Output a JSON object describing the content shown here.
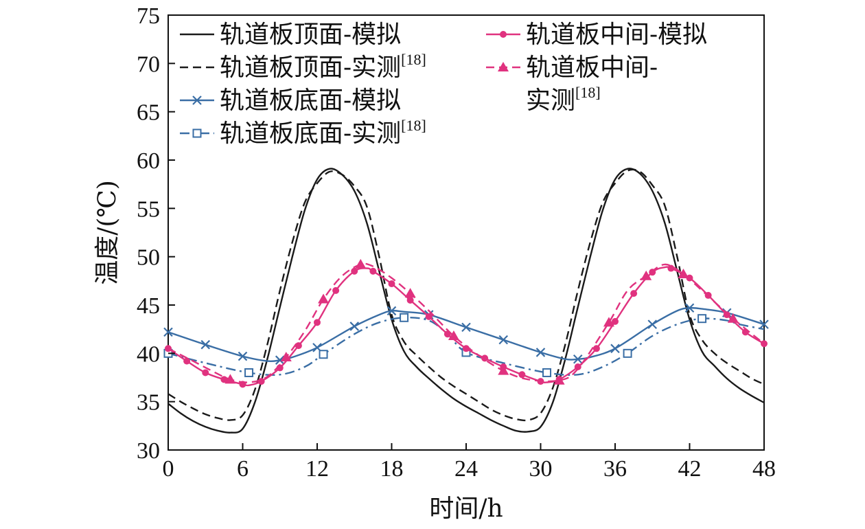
{
  "chart_data": {
    "type": "line",
    "xlabel": "时间/h",
    "ylabel": "温度/(℃)",
    "xlim": [
      0,
      48
    ],
    "ylim": [
      30,
      75
    ],
    "xticks": [
      0,
      6,
      12,
      18,
      24,
      30,
      36,
      42,
      48
    ],
    "yticks": [
      30,
      35,
      40,
      45,
      50,
      55,
      60,
      65,
      70,
      75
    ],
    "grid": false,
    "legend_position": "top",
    "colors": {
      "black": "#1a1a1a",
      "blue": "#3a6ea5",
      "pink": "#e0327f"
    },
    "series": [
      {
        "name": "轨道板顶面-模拟",
        "ref": "",
        "color": "#1a1a1a",
        "dash": "solid",
        "marker": "none",
        "points": [
          [
            0,
            34.8
          ],
          [
            1,
            33.8
          ],
          [
            2,
            33.0
          ],
          [
            3,
            32.4
          ],
          [
            4,
            32.0
          ],
          [
            5,
            31.8
          ],
          [
            6,
            32.2
          ],
          [
            7,
            35.0
          ],
          [
            8,
            39.5
          ],
          [
            9,
            44.8
          ],
          [
            10,
            50.0
          ],
          [
            11,
            54.8
          ],
          [
            12,
            58.0
          ],
          [
            13,
            59.1
          ],
          [
            14,
            58.5
          ],
          [
            15,
            56.8
          ],
          [
            16,
            53.5
          ],
          [
            17,
            48.5
          ],
          [
            18,
            43.5
          ],
          [
            19,
            40.2
          ],
          [
            20,
            38.6
          ],
          [
            21,
            37.4
          ],
          [
            22,
            36.3
          ],
          [
            23,
            35.3
          ],
          [
            24,
            34.5
          ],
          [
            25,
            33.8
          ],
          [
            26,
            33.1
          ],
          [
            27,
            32.5
          ],
          [
            28,
            32.0
          ],
          [
            29,
            31.9
          ],
          [
            30,
            32.4
          ],
          [
            31,
            35.0
          ],
          [
            32,
            39.5
          ],
          [
            33,
            44.8
          ],
          [
            34,
            50.0
          ],
          [
            35,
            54.8
          ],
          [
            36,
            58.0
          ],
          [
            37,
            59.1
          ],
          [
            38,
            58.6
          ],
          [
            39,
            56.8
          ],
          [
            40,
            53.5
          ],
          [
            41,
            48.5
          ],
          [
            42,
            43.5
          ],
          [
            43,
            40.2
          ],
          [
            44,
            38.7
          ],
          [
            45,
            37.4
          ],
          [
            46,
            36.4
          ],
          [
            47,
            35.6
          ],
          [
            48,
            34.9
          ]
        ]
      },
      {
        "name": "轨道板顶面-实测",
        "ref": "[18]",
        "color": "#1a1a1a",
        "dash": "dashed",
        "marker": "none",
        "points": [
          [
            0,
            35.8
          ],
          [
            1,
            35.0
          ],
          [
            2,
            34.3
          ],
          [
            3,
            33.7
          ],
          [
            4,
            33.3
          ],
          [
            5,
            33.1
          ],
          [
            6,
            33.6
          ],
          [
            7,
            36.3
          ],
          [
            8,
            41.0
          ],
          [
            9,
            46.5
          ],
          [
            10,
            51.5
          ],
          [
            11,
            55.6
          ],
          [
            12,
            57.6
          ],
          [
            13,
            58.8
          ],
          [
            14,
            58.5
          ],
          [
            15,
            57.3
          ],
          [
            16,
            55.2
          ],
          [
            17,
            50.0
          ],
          [
            18,
            44.0
          ],
          [
            19,
            41.2
          ],
          [
            20,
            39.8
          ],
          [
            21,
            38.6
          ],
          [
            22,
            37.5
          ],
          [
            23,
            36.6
          ],
          [
            24,
            35.8
          ],
          [
            25,
            35.0
          ],
          [
            26,
            34.2
          ],
          [
            27,
            33.6
          ],
          [
            28,
            33.2
          ],
          [
            29,
            33.1
          ],
          [
            30,
            33.8
          ],
          [
            31,
            36.5
          ],
          [
            32,
            41.0
          ],
          [
            33,
            46.5
          ],
          [
            34,
            51.5
          ],
          [
            35,
            55.6
          ],
          [
            36,
            57.6
          ],
          [
            37,
            58.9
          ],
          [
            38,
            58.8
          ],
          [
            39,
            57.4
          ],
          [
            40,
            55.3
          ],
          [
            41,
            50.0
          ],
          [
            42,
            44.0
          ],
          [
            43,
            41.4
          ],
          [
            44,
            40.0
          ],
          [
            45,
            39.0
          ],
          [
            46,
            38.2
          ],
          [
            47,
            37.4
          ],
          [
            48,
            36.8
          ]
        ]
      },
      {
        "name": "轨道板底面-模拟",
        "ref": "",
        "color": "#3a6ea5",
        "dash": "solid",
        "marker": "x",
        "marker_x": [
          0,
          3,
          6,
          9,
          12,
          15,
          18,
          21,
          24,
          27,
          30,
          33,
          36,
          39,
          42,
          45,
          48
        ],
        "points": [
          [
            0,
            42.2
          ],
          [
            3,
            40.9
          ],
          [
            6,
            39.7
          ],
          [
            8,
            39.2
          ],
          [
            9,
            39.3
          ],
          [
            10,
            39.6
          ],
          [
            12,
            40.6
          ],
          [
            15,
            42.8
          ],
          [
            17,
            44.0
          ],
          [
            18,
            44.4
          ],
          [
            19,
            44.3
          ],
          [
            21,
            44.0
          ],
          [
            24,
            42.7
          ],
          [
            27,
            41.4
          ],
          [
            30,
            40.1
          ],
          [
            32,
            39.4
          ],
          [
            33,
            39.4
          ],
          [
            34,
            39.6
          ],
          [
            36,
            40.5
          ],
          [
            39,
            43.0
          ],
          [
            41,
            44.4
          ],
          [
            42,
            44.7
          ],
          [
            43,
            44.6
          ],
          [
            45,
            44.2
          ],
          [
            48,
            43.0
          ]
        ]
      },
      {
        "name": "轨道板底面-实测",
        "ref": "[18]",
        "color": "#3a6ea5",
        "dash": "dashdot",
        "marker": "square",
        "marker_x": [
          0,
          6.5,
          12.5,
          19,
          24,
          30.5,
          37,
          43
        ],
        "points": [
          [
            0,
            40.0
          ],
          [
            3,
            39.0
          ],
          [
            6.5,
            38.0
          ],
          [
            9,
            37.8
          ],
          [
            11,
            38.6
          ],
          [
            12.5,
            39.9
          ],
          [
            15,
            42.0
          ],
          [
            17,
            43.2
          ],
          [
            19,
            43.7
          ],
          [
            21,
            43.4
          ],
          [
            22.5,
            42.0
          ],
          [
            24,
            40.1
          ],
          [
            27,
            39.0
          ],
          [
            30.5,
            38.0
          ],
          [
            33,
            37.8
          ],
          [
            35,
            38.6
          ],
          [
            37,
            40.0
          ],
          [
            39,
            41.8
          ],
          [
            41,
            43.0
          ],
          [
            43,
            43.6
          ],
          [
            45,
            43.4
          ],
          [
            46,
            43.0
          ],
          [
            48,
            42.5
          ]
        ]
      },
      {
        "name": "轨道板中间-模拟",
        "ref": "",
        "color": "#e0327f",
        "dash": "solid",
        "marker": "dot",
        "marker_x": [
          0,
          1.5,
          3,
          4.5,
          6,
          7.5,
          9,
          10.5,
          12,
          13.5,
          15,
          16.5,
          18,
          19.5,
          21,
          22.5,
          24,
          25.5,
          27,
          28.5,
          30,
          31.5,
          33,
          34.5,
          36,
          37.5,
          39,
          40.5,
          42,
          43.5,
          45,
          46.5,
          48
        ],
        "points": [
          [
            0,
            40.5
          ],
          [
            1.5,
            39.2
          ],
          [
            3,
            38.0
          ],
          [
            4.5,
            37.3
          ],
          [
            6,
            36.8
          ],
          [
            6.5,
            36.7
          ],
          [
            7.5,
            37.1
          ],
          [
            9,
            38.5
          ],
          [
            10.5,
            40.8
          ],
          [
            12,
            43.2
          ],
          [
            13.5,
            46.5
          ],
          [
            15,
            48.5
          ],
          [
            16,
            48.8
          ],
          [
            16.5,
            48.5
          ],
          [
            18,
            47.2
          ],
          [
            19.5,
            45.5
          ],
          [
            21,
            43.8
          ],
          [
            22.5,
            42.0
          ],
          [
            24,
            40.5
          ],
          [
            25.5,
            39.5
          ],
          [
            27,
            38.6
          ],
          [
            28.5,
            37.8
          ],
          [
            30,
            37.1
          ],
          [
            30.5,
            37.0
          ],
          [
            31.5,
            37.3
          ],
          [
            33,
            38.6
          ],
          [
            34.5,
            40.5
          ],
          [
            36,
            43.3
          ],
          [
            37.5,
            46.2
          ],
          [
            39,
            48.4
          ],
          [
            40,
            48.9
          ],
          [
            40.5,
            48.8
          ],
          [
            42,
            47.8
          ],
          [
            43.5,
            46.0
          ],
          [
            45,
            44.0
          ],
          [
            46.5,
            42.2
          ],
          [
            48,
            41.0
          ]
        ]
      },
      {
        "name": "轨道板中间-实测",
        "ref": "[18]",
        "color": "#e0327f",
        "dash": "dashed",
        "marker": "triangle",
        "marker_x": [
          5,
          9.5,
          12.5,
          15.5,
          19.5,
          23,
          27,
          31.5,
          35.5,
          38.5,
          41.5,
          45.5
        ],
        "points": [
          [
            0,
            40.5
          ],
          [
            2,
            39.2
          ],
          [
            3.5,
            38.2
          ],
          [
            5,
            37.3
          ],
          [
            6.5,
            37.0
          ],
          [
            8,
            37.6
          ],
          [
            9.5,
            39.6
          ],
          [
            11,
            42.3
          ],
          [
            12.5,
            45.6
          ],
          [
            14,
            48.0
          ],
          [
            15.5,
            49.2
          ],
          [
            16.5,
            49.0
          ],
          [
            18,
            47.8
          ],
          [
            19.5,
            46.2
          ],
          [
            21,
            44.4
          ],
          [
            23,
            41.8
          ],
          [
            25,
            39.8
          ],
          [
            27,
            38.2
          ],
          [
            29,
            37.3
          ],
          [
            31.5,
            37.2
          ],
          [
            33,
            38.4
          ],
          [
            35.5,
            43.2
          ],
          [
            37,
            46.5
          ],
          [
            38.5,
            48.0
          ],
          [
            40,
            49.2
          ],
          [
            41.5,
            48.2
          ],
          [
            43,
            46.5
          ],
          [
            45.5,
            43.6
          ],
          [
            48,
            41.0
          ]
        ]
      }
    ]
  }
}
